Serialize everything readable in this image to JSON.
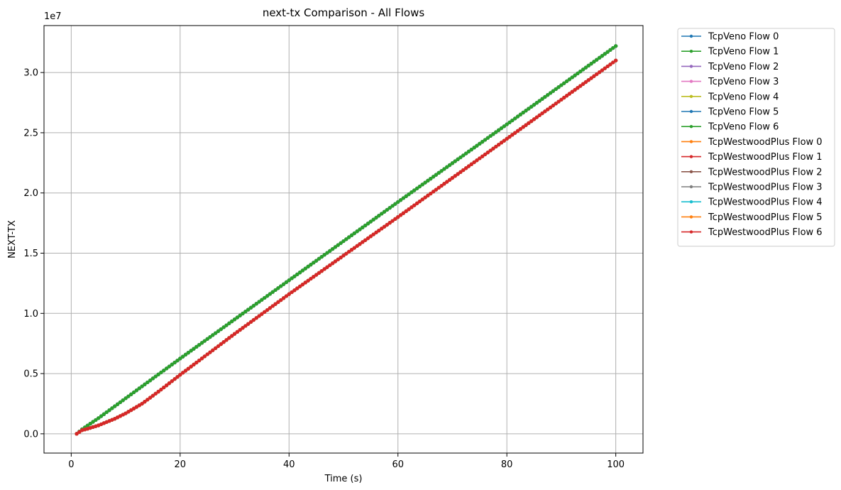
{
  "chart_data": {
    "type": "line",
    "title": "next-tx Comparison - All Flows",
    "xlabel": "Time (s)",
    "ylabel": "NEXT-TX",
    "y_offset_label": "1e7",
    "xlim": [
      -5,
      105
    ],
    "ylim": [
      -1600000,
      33900000
    ],
    "x_ticks": [
      0,
      20,
      40,
      60,
      80,
      100
    ],
    "y_ticks": [
      0,
      5000000,
      10000000,
      15000000,
      20000000,
      25000000,
      30000000
    ],
    "y_tick_labels": [
      "0.0",
      "0.5",
      "1.0",
      "1.5",
      "2.0",
      "2.5",
      "3.0"
    ],
    "grid": true,
    "legend_position": "outside-upper-right",
    "series": [
      {
        "name": "TcpVeno Flow 0",
        "color": "#1f77b4",
        "x": [
          1,
          2,
          5,
          10,
          20,
          40,
          60,
          80,
          100
        ],
        "y": [
          0,
          380000,
          1300000,
          2950000,
          6250000,
          12750000,
          19250000,
          25700000,
          32200000
        ]
      },
      {
        "name": "TcpVeno Flow 1",
        "color": "#2ca02c",
        "x": [
          1,
          2,
          5,
          10,
          20,
          40,
          60,
          80,
          100
        ],
        "y": [
          0,
          380000,
          1300000,
          2950000,
          6250000,
          12750000,
          19250000,
          25700000,
          32200000
        ]
      },
      {
        "name": "TcpVeno Flow 2",
        "color": "#9467bd",
        "x": [
          1,
          2,
          5,
          10,
          20,
          40,
          60,
          80,
          100
        ],
        "y": [
          0,
          380000,
          1300000,
          2950000,
          6250000,
          12750000,
          19250000,
          25700000,
          32200000
        ]
      },
      {
        "name": "TcpVeno Flow 3",
        "color": "#e377c2",
        "x": [
          1,
          2,
          5,
          10,
          20,
          40,
          60,
          80,
          100
        ],
        "y": [
          0,
          380000,
          1300000,
          2950000,
          6250000,
          12750000,
          19250000,
          25700000,
          32200000
        ]
      },
      {
        "name": "TcpVeno Flow 4",
        "color": "#bcbd22",
        "x": [
          1,
          2,
          5,
          10,
          20,
          40,
          60,
          80,
          100
        ],
        "y": [
          0,
          380000,
          1300000,
          2950000,
          6250000,
          12750000,
          19250000,
          25700000,
          32200000
        ]
      },
      {
        "name": "TcpVeno Flow 5",
        "color": "#1f77b4",
        "x": [
          1,
          2,
          5,
          10,
          20,
          40,
          60,
          80,
          100
        ],
        "y": [
          0,
          380000,
          1300000,
          2950000,
          6250000,
          12750000,
          19250000,
          25700000,
          32200000
        ]
      },
      {
        "name": "TcpVeno Flow 6",
        "color": "#2ca02c",
        "x": [
          1,
          2,
          5,
          10,
          20,
          40,
          60,
          80,
          100
        ],
        "y": [
          0,
          380000,
          1300000,
          2950000,
          6250000,
          12750000,
          19250000,
          25700000,
          32200000
        ]
      },
      {
        "name": "TcpWestwoodPlus Flow 0",
        "color": "#ff7f0e",
        "x": [
          1,
          2,
          3,
          5,
          8,
          10,
          13,
          16,
          20,
          30,
          40,
          60,
          80,
          100
        ],
        "y": [
          0,
          300000,
          420000,
          700000,
          1250000,
          1700000,
          2500000,
          3500000,
          4900000,
          8300000,
          11600000,
          18000000,
          24500000,
          31000000
        ]
      },
      {
        "name": "TcpWestwoodPlus Flow 1",
        "color": "#d62728",
        "x": [
          1,
          2,
          3,
          5,
          8,
          10,
          13,
          16,
          20,
          30,
          40,
          60,
          80,
          100
        ],
        "y": [
          0,
          300000,
          420000,
          700000,
          1250000,
          1700000,
          2500000,
          3500000,
          4900000,
          8300000,
          11600000,
          18000000,
          24500000,
          31000000
        ]
      },
      {
        "name": "TcpWestwoodPlus Flow 2",
        "color": "#8c564b",
        "x": [
          1,
          2,
          3,
          5,
          8,
          10,
          13,
          16,
          20,
          30,
          40,
          60,
          80,
          100
        ],
        "y": [
          0,
          300000,
          420000,
          700000,
          1250000,
          1700000,
          2500000,
          3500000,
          4900000,
          8300000,
          11600000,
          18000000,
          24500000,
          31000000
        ]
      },
      {
        "name": "TcpWestwoodPlus Flow 3",
        "color": "#7f7f7f",
        "x": [
          1,
          2,
          3,
          5,
          8,
          10,
          13,
          16,
          20,
          30,
          40,
          60,
          80,
          100
        ],
        "y": [
          0,
          300000,
          420000,
          700000,
          1250000,
          1700000,
          2500000,
          3500000,
          4900000,
          8300000,
          11600000,
          18000000,
          24500000,
          31000000
        ]
      },
      {
        "name": "TcpWestwoodPlus Flow 4",
        "color": "#17becf",
        "x": [
          1,
          2,
          3,
          5,
          8,
          10,
          13,
          16,
          20,
          30,
          40,
          60,
          80,
          100
        ],
        "y": [
          0,
          300000,
          420000,
          700000,
          1250000,
          1700000,
          2500000,
          3500000,
          4900000,
          8300000,
          11600000,
          18000000,
          24500000,
          31000000
        ]
      },
      {
        "name": "TcpWestwoodPlus Flow 5",
        "color": "#ff7f0e",
        "x": [
          1,
          2,
          3,
          5,
          8,
          10,
          13,
          16,
          20,
          30,
          40,
          60,
          80,
          100
        ],
        "y": [
          0,
          300000,
          420000,
          700000,
          1250000,
          1700000,
          2500000,
          3500000,
          4900000,
          8300000,
          11600000,
          18000000,
          24500000,
          31000000
        ]
      },
      {
        "name": "TcpWestwoodPlus Flow 6",
        "color": "#d62728",
        "x": [
          1,
          2,
          3,
          5,
          8,
          10,
          13,
          16,
          20,
          30,
          40,
          60,
          80,
          100
        ],
        "y": [
          0,
          300000,
          420000,
          700000,
          1250000,
          1700000,
          2500000,
          3500000,
          4900000,
          8300000,
          11600000,
          18000000,
          24500000,
          31000000
        ]
      }
    ]
  }
}
